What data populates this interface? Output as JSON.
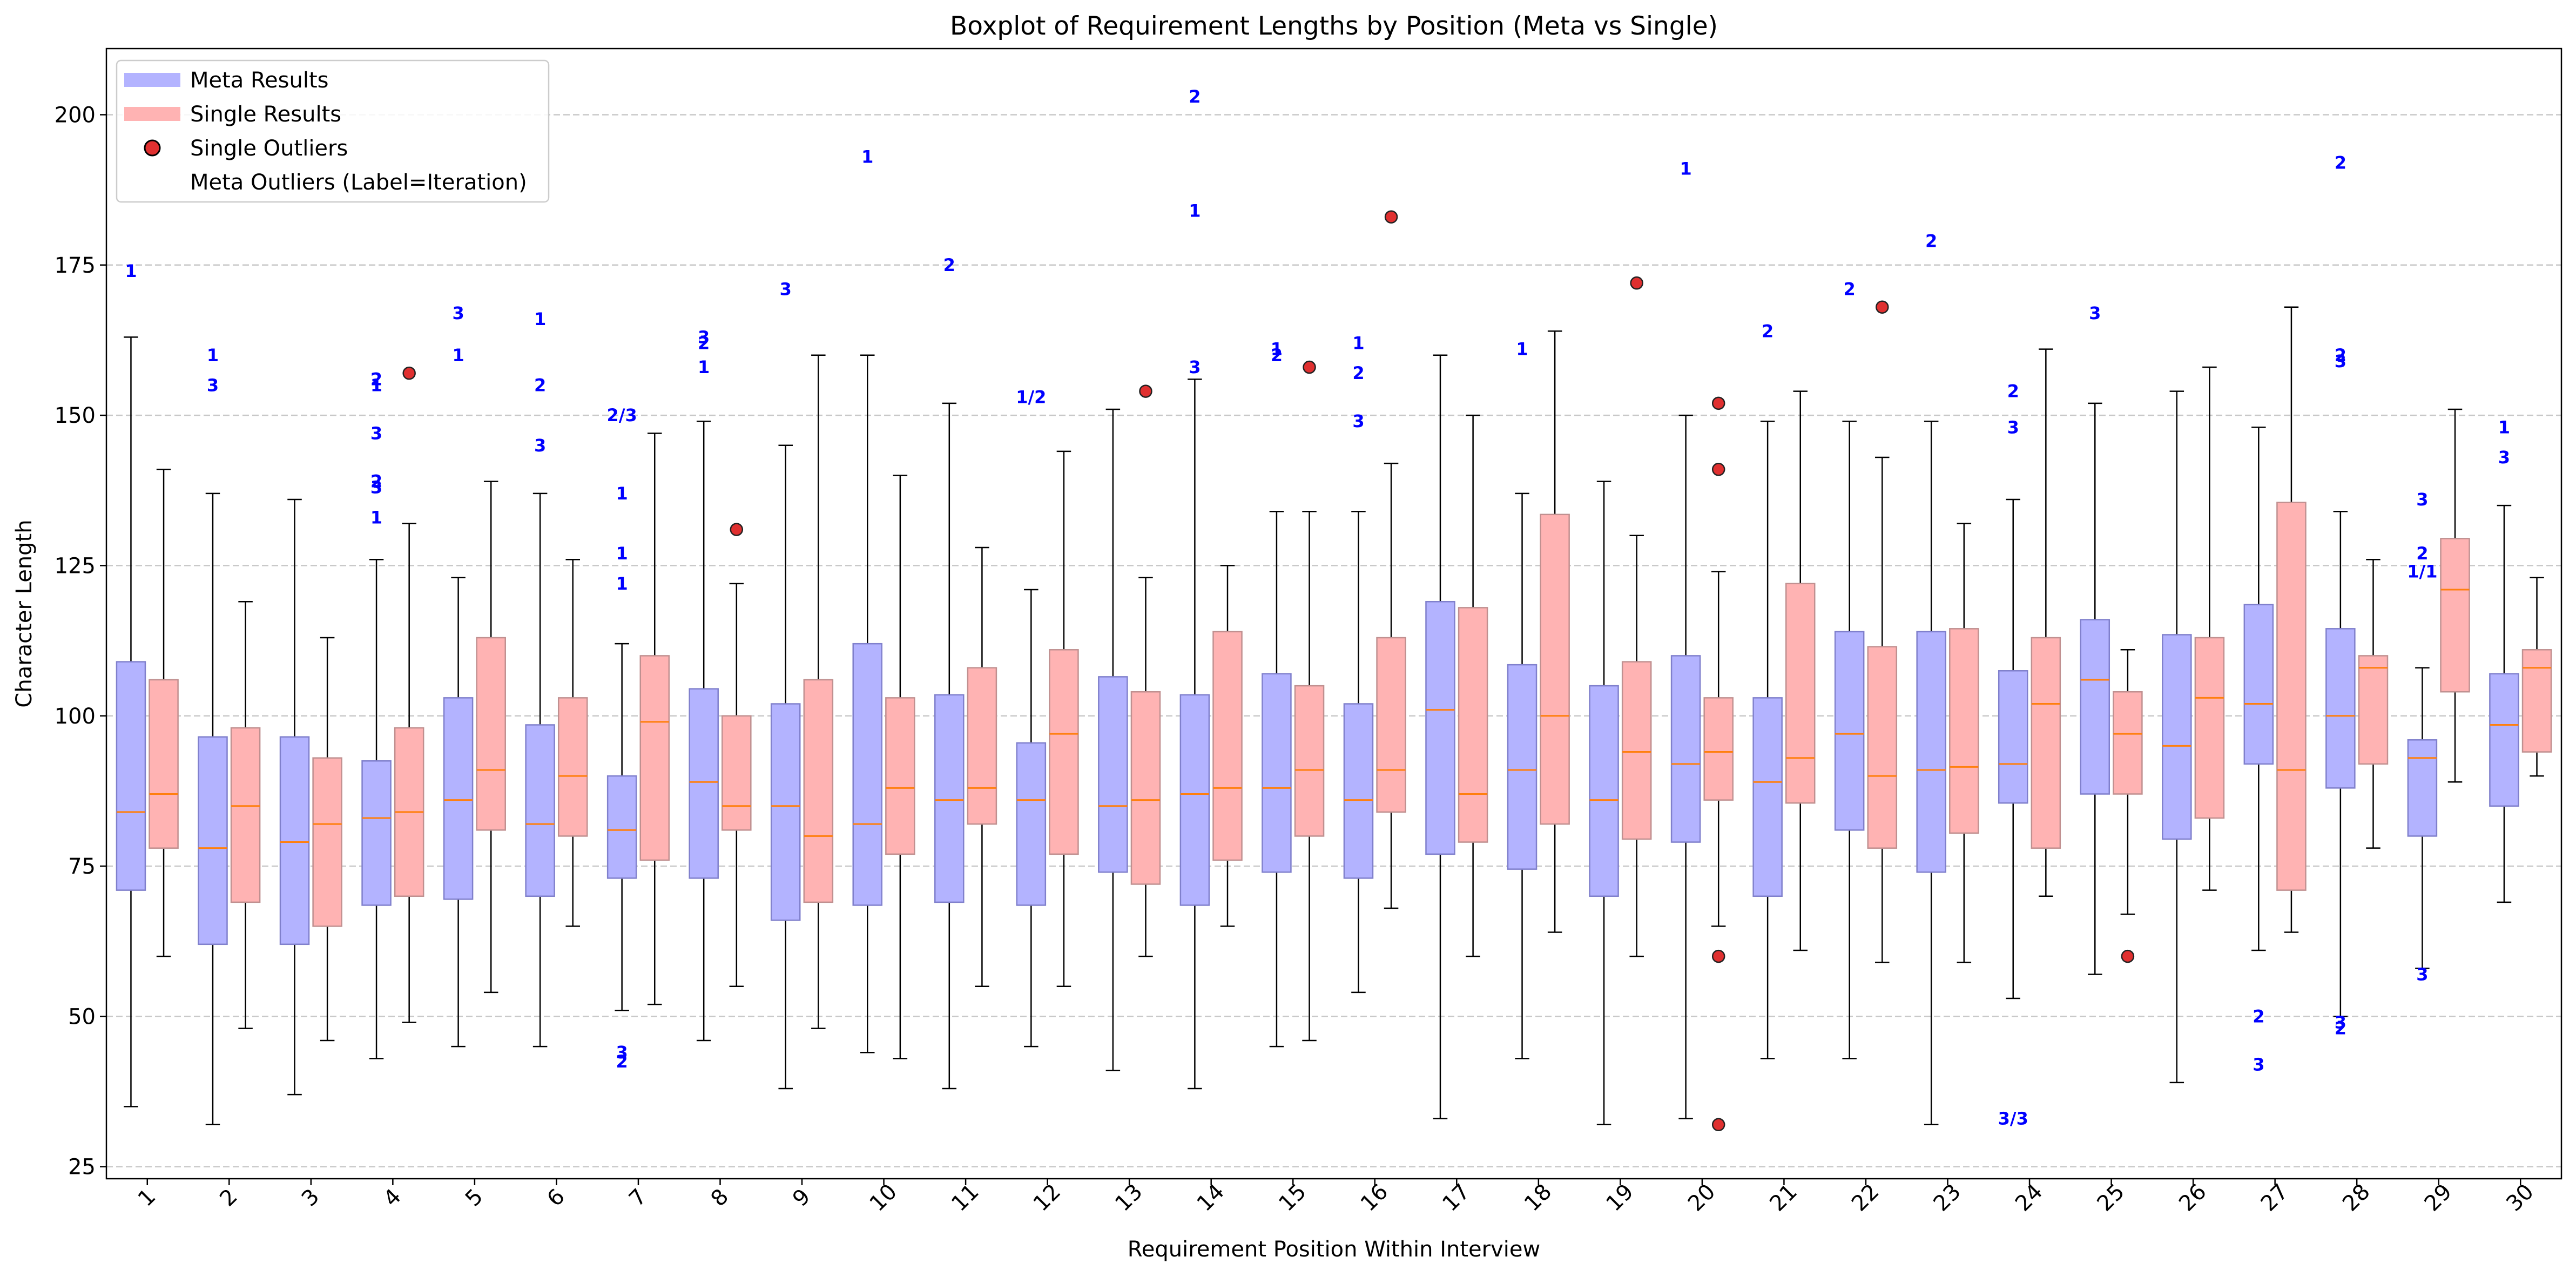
{
  "chart_data": {
    "type": "boxplot",
    "title": "Boxplot of Requirement Lengths by Position (Meta vs Single)",
    "xlabel": "Requirement Position Within Interview",
    "ylabel": "Character Length",
    "ylim": [
      23,
      211
    ],
    "yticks": [
      25,
      50,
      75,
      100,
      125,
      150,
      175,
      200
    ],
    "categories": [
      "1",
      "2",
      "3",
      "4",
      "5",
      "6",
      "7",
      "8",
      "9",
      "10",
      "11",
      "12",
      "13",
      "14",
      "15",
      "16",
      "17",
      "18",
      "19",
      "20",
      "21",
      "22",
      "23",
      "24",
      "25",
      "26",
      "27",
      "28",
      "29",
      "30"
    ],
    "grid": "y dashed",
    "legend_position": "top-left",
    "colors": {
      "meta_fill": "#b3b3ff",
      "meta_edge": "#8080cc",
      "single_fill": "#ffb3b3",
      "single_edge": "#c09090",
      "median": "#ff7f0e",
      "outlier_fill": "#e03030",
      "outlier_label": "#0000ff"
    },
    "legend": [
      {
        "label": "Meta Results",
        "marker": "patch",
        "color": "#b3b3ff"
      },
      {
        "label": "Single Results",
        "marker": "patch",
        "color": "#ffb3b3"
      },
      {
        "label": "Single Outliers",
        "marker": "circle",
        "color": "#e03030"
      },
      {
        "label": "Meta Outliers (Label=Iteration)",
        "marker": "none",
        "color": ""
      }
    ],
    "series": [
      {
        "name": "Meta Results",
        "boxes": [
          {
            "pos": 1,
            "whislo": 35,
            "q1": 71,
            "med": 84,
            "q3": 109,
            "whishi": 163
          },
          {
            "pos": 2,
            "whislo": 32,
            "q1": 62,
            "med": 78,
            "q3": 96.5,
            "whishi": 137
          },
          {
            "pos": 3,
            "whislo": 37,
            "q1": 62,
            "med": 79,
            "q3": 96.5,
            "whishi": 136
          },
          {
            "pos": 4,
            "whislo": 43,
            "q1": 68.5,
            "med": 83,
            "q3": 92.5,
            "whishi": 126
          },
          {
            "pos": 5,
            "whislo": 45,
            "q1": 69.5,
            "med": 86,
            "q3": 103,
            "whishi": 123
          },
          {
            "pos": 6,
            "whislo": 45,
            "q1": 70,
            "med": 82,
            "q3": 98.5,
            "whishi": 137
          },
          {
            "pos": 7,
            "whislo": 51,
            "q1": 73,
            "med": 81,
            "q3": 90,
            "whishi": 112
          },
          {
            "pos": 8,
            "whislo": 46,
            "q1": 73,
            "med": 89,
            "q3": 104.5,
            "whishi": 149
          },
          {
            "pos": 9,
            "whislo": 38,
            "q1": 66,
            "med": 85,
            "q3": 102,
            "whishi": 145
          },
          {
            "pos": 10,
            "whislo": 44,
            "q1": 68.5,
            "med": 82,
            "q3": 112,
            "whishi": 160
          },
          {
            "pos": 11,
            "whislo": 38,
            "q1": 69,
            "med": 86,
            "q3": 103.5,
            "whishi": 152
          },
          {
            "pos": 12,
            "whislo": 45,
            "q1": 68.5,
            "med": 86,
            "q3": 95.5,
            "whishi": 121
          },
          {
            "pos": 13,
            "whislo": 41,
            "q1": 74,
            "med": 85,
            "q3": 106.5,
            "whishi": 151
          },
          {
            "pos": 14,
            "whislo": 38,
            "q1": 68.5,
            "med": 87,
            "q3": 103.5,
            "whishi": 156
          },
          {
            "pos": 15,
            "whislo": 45,
            "q1": 74,
            "med": 88,
            "q3": 107,
            "whishi": 134
          },
          {
            "pos": 16,
            "whislo": 54,
            "q1": 73,
            "med": 86,
            "q3": 102,
            "whishi": 134
          },
          {
            "pos": 17,
            "whislo": 33,
            "q1": 77,
            "med": 101,
            "q3": 119,
            "whishi": 160
          },
          {
            "pos": 18,
            "whislo": 43,
            "q1": 74.5,
            "med": 91,
            "q3": 108.5,
            "whishi": 137
          },
          {
            "pos": 19,
            "whislo": 32,
            "q1": 70,
            "med": 86,
            "q3": 105,
            "whishi": 139
          },
          {
            "pos": 20,
            "whislo": 33,
            "q1": 79,
            "med": 92,
            "q3": 110,
            "whishi": 150
          },
          {
            "pos": 21,
            "whislo": 43,
            "q1": 70,
            "med": 89,
            "q3": 103,
            "whishi": 149
          },
          {
            "pos": 22,
            "whislo": 43,
            "q1": 81,
            "med": 97,
            "q3": 114,
            "whishi": 149
          },
          {
            "pos": 23,
            "whislo": 32,
            "q1": 74,
            "med": 91,
            "q3": 114,
            "whishi": 149
          },
          {
            "pos": 24,
            "whislo": 53,
            "q1": 85.5,
            "med": 92,
            "q3": 107.5,
            "whishi": 136
          },
          {
            "pos": 25,
            "whislo": 57,
            "q1": 87,
            "med": 106,
            "q3": 116,
            "whishi": 152
          },
          {
            "pos": 26,
            "whislo": 39,
            "q1": 79.5,
            "med": 95,
            "q3": 113.5,
            "whishi": 154
          },
          {
            "pos": 27,
            "whislo": 61,
            "q1": 92,
            "med": 102,
            "q3": 118.5,
            "whishi": 148
          },
          {
            "pos": 28,
            "whislo": 50,
            "q1": 88,
            "med": 100,
            "q3": 114.5,
            "whishi": 134
          },
          {
            "pos": 29,
            "whislo": 58,
            "q1": 80,
            "med": 93,
            "q3": 96,
            "whishi": 108
          },
          {
            "pos": 30,
            "whislo": 69,
            "q1": 85,
            "med": 98.5,
            "q3": 107,
            "whishi": 135
          }
        ]
      },
      {
        "name": "Single Results",
        "boxes": [
          {
            "pos": 1,
            "whislo": 60,
            "q1": 78,
            "med": 87,
            "q3": 106,
            "whishi": 141
          },
          {
            "pos": 2,
            "whislo": 48,
            "q1": 69,
            "med": 85,
            "q3": 98,
            "whishi": 119
          },
          {
            "pos": 3,
            "whislo": 46,
            "q1": 65,
            "med": 82,
            "q3": 93,
            "whishi": 113
          },
          {
            "pos": 4,
            "whislo": 49,
            "q1": 70,
            "med": 84,
            "q3": 98,
            "whishi": 132
          },
          {
            "pos": 5,
            "whislo": 54,
            "q1": 81,
            "med": 91,
            "q3": 113,
            "whishi": 139
          },
          {
            "pos": 6,
            "whislo": 65,
            "q1": 80,
            "med": 90,
            "q3": 103,
            "whishi": 126
          },
          {
            "pos": 7,
            "whislo": 52,
            "q1": 76,
            "med": 99,
            "q3": 110,
            "whishi": 147
          },
          {
            "pos": 8,
            "whislo": 55,
            "q1": 81,
            "med": 85,
            "q3": 100,
            "whishi": 122
          },
          {
            "pos": 9,
            "whislo": 48,
            "q1": 69,
            "med": 80,
            "q3": 106,
            "whishi": 160
          },
          {
            "pos": 10,
            "whislo": 43,
            "q1": 77,
            "med": 88,
            "q3": 103,
            "whishi": 140
          },
          {
            "pos": 11,
            "whislo": 55,
            "q1": 82,
            "med": 88,
            "q3": 108,
            "whishi": 128
          },
          {
            "pos": 12,
            "whislo": 55,
            "q1": 77,
            "med": 97,
            "q3": 111,
            "whishi": 144
          },
          {
            "pos": 13,
            "whislo": 60,
            "q1": 72,
            "med": 86,
            "q3": 104,
            "whishi": 123
          },
          {
            "pos": 14,
            "whislo": 65,
            "q1": 76,
            "med": 88,
            "q3": 114,
            "whishi": 125
          },
          {
            "pos": 15,
            "whislo": 46,
            "q1": 80,
            "med": 91,
            "q3": 105,
            "whishi": 134
          },
          {
            "pos": 16,
            "whislo": 68,
            "q1": 84,
            "med": 91,
            "q3": 113,
            "whishi": 142
          },
          {
            "pos": 17,
            "whislo": 60,
            "q1": 79,
            "med": 87,
            "q3": 118,
            "whishi": 150
          },
          {
            "pos": 18,
            "whislo": 64,
            "q1": 82,
            "med": 100,
            "q3": 133.5,
            "whishi": 164
          },
          {
            "pos": 19,
            "whislo": 60,
            "q1": 79.5,
            "med": 94,
            "q3": 109,
            "whishi": 130
          },
          {
            "pos": 20,
            "whislo": 65,
            "q1": 86,
            "med": 94,
            "q3": 103,
            "whishi": 124
          },
          {
            "pos": 21,
            "whislo": 61,
            "q1": 85.5,
            "med": 93,
            "q3": 122,
            "whishi": 154
          },
          {
            "pos": 22,
            "whislo": 59,
            "q1": 78,
            "med": 90,
            "q3": 111.5,
            "whishi": 143
          },
          {
            "pos": 23,
            "whislo": 59,
            "q1": 80.5,
            "med": 91.5,
            "q3": 114.5,
            "whishi": 132
          },
          {
            "pos": 24,
            "whislo": 70,
            "q1": 78,
            "med": 102,
            "q3": 113,
            "whishi": 161
          },
          {
            "pos": 25,
            "whislo": 67,
            "q1": 87,
            "med": 97,
            "q3": 104,
            "whishi": 111
          },
          {
            "pos": 26,
            "whislo": 71,
            "q1": 83,
            "med": 103,
            "q3": 113,
            "whishi": 158
          },
          {
            "pos": 27,
            "whislo": 64,
            "q1": 71,
            "med": 91,
            "q3": 135.5,
            "whishi": 168
          },
          {
            "pos": 28,
            "whislo": 78,
            "q1": 92,
            "med": 108,
            "q3": 110,
            "whishi": 126
          },
          {
            "pos": 29,
            "whislo": 89,
            "q1": 104,
            "med": 121,
            "q3": 129.5,
            "whishi": 151
          },
          {
            "pos": 30,
            "whislo": 90,
            "q1": 94,
            "med": 108,
            "q3": 111,
            "whishi": 123
          }
        ]
      }
    ],
    "single_outliers": [
      {
        "pos": 4,
        "y": 157
      },
      {
        "pos": 8,
        "y": 131
      },
      {
        "pos": 13,
        "y": 154
      },
      {
        "pos": 15,
        "y": 158
      },
      {
        "pos": 16,
        "y": 183
      },
      {
        "pos": 19,
        "y": 172
      },
      {
        "pos": 20,
        "y": 152
      },
      {
        "pos": 20,
        "y": 141
      },
      {
        "pos": 20,
        "y": 60
      },
      {
        "pos": 20,
        "y": 32
      },
      {
        "pos": 22,
        "y": 168
      },
      {
        "pos": 25,
        "y": 60
      }
    ],
    "meta_outliers": [
      {
        "pos": 1,
        "y": 174,
        "label": "1"
      },
      {
        "pos": 2,
        "y": 160,
        "label": "1"
      },
      {
        "pos": 2,
        "y": 155,
        "label": "3"
      },
      {
        "pos": 4,
        "y": 156,
        "label": "2"
      },
      {
        "pos": 4,
        "y": 155,
        "label": "1"
      },
      {
        "pos": 4,
        "y": 147,
        "label": "3"
      },
      {
        "pos": 4,
        "y": 139,
        "label": "2"
      },
      {
        "pos": 4,
        "y": 138,
        "label": "3"
      },
      {
        "pos": 4,
        "y": 133,
        "label": "1"
      },
      {
        "pos": 5,
        "y": 167,
        "label": "3"
      },
      {
        "pos": 5,
        "y": 160,
        "label": "1"
      },
      {
        "pos": 6,
        "y": 166,
        "label": "1"
      },
      {
        "pos": 6,
        "y": 155,
        "label": "2"
      },
      {
        "pos": 6,
        "y": 145,
        "label": "3"
      },
      {
        "pos": 7,
        "y": 150,
        "label": "2/3"
      },
      {
        "pos": 7,
        "y": 137,
        "label": "1"
      },
      {
        "pos": 7,
        "y": 127,
        "label": "1"
      },
      {
        "pos": 7,
        "y": 122,
        "label": "1"
      },
      {
        "pos": 7,
        "y": 44,
        "label": "3"
      },
      {
        "pos": 7,
        "y": 42.5,
        "label": "2"
      },
      {
        "pos": 8,
        "y": 163,
        "label": "3"
      },
      {
        "pos": 8,
        "y": 162,
        "label": "2"
      },
      {
        "pos": 8,
        "y": 158,
        "label": "1"
      },
      {
        "pos": 9,
        "y": 171,
        "label": "3"
      },
      {
        "pos": 10,
        "y": 193,
        "label": "1"
      },
      {
        "pos": 11,
        "y": 175,
        "label": "2"
      },
      {
        "pos": 12,
        "y": 153,
        "label": "1/2"
      },
      {
        "pos": 14,
        "y": 203,
        "label": "2"
      },
      {
        "pos": 14,
        "y": 184,
        "label": "1"
      },
      {
        "pos": 14,
        "y": 158,
        "label": "3"
      },
      {
        "pos": 15,
        "y": 161,
        "label": "1"
      },
      {
        "pos": 15,
        "y": 160,
        "label": "2"
      },
      {
        "pos": 16,
        "y": 162,
        "label": "1"
      },
      {
        "pos": 16,
        "y": 157,
        "label": "2"
      },
      {
        "pos": 16,
        "y": 149,
        "label": "3"
      },
      {
        "pos": 18,
        "y": 161,
        "label": "1"
      },
      {
        "pos": 20,
        "y": 191,
        "label": "1"
      },
      {
        "pos": 21,
        "y": 164,
        "label": "2"
      },
      {
        "pos": 22,
        "y": 171,
        "label": "2"
      },
      {
        "pos": 23,
        "y": 179,
        "label": "2"
      },
      {
        "pos": 24,
        "y": 154,
        "label": "2"
      },
      {
        "pos": 24,
        "y": 148,
        "label": "3"
      },
      {
        "pos": 24,
        "y": 33,
        "label": "3/3"
      },
      {
        "pos": 25,
        "y": 167,
        "label": "3"
      },
      {
        "pos": 27,
        "y": 50,
        "label": "2"
      },
      {
        "pos": 27,
        "y": 42,
        "label": "3"
      },
      {
        "pos": 28,
        "y": 192,
        "label": "2"
      },
      {
        "pos": 28,
        "y": 160,
        "label": "2"
      },
      {
        "pos": 28,
        "y": 159,
        "label": "3"
      },
      {
        "pos": 28,
        "y": 49,
        "label": "3"
      },
      {
        "pos": 28,
        "y": 48,
        "label": "2"
      },
      {
        "pos": 29,
        "y": 136,
        "label": "3"
      },
      {
        "pos": 29,
        "y": 127,
        "label": "2"
      },
      {
        "pos": 29,
        "y": 124,
        "label": "1/1"
      },
      {
        "pos": 29,
        "y": 57,
        "label": "3"
      },
      {
        "pos": 30,
        "y": 148,
        "label": "1"
      },
      {
        "pos": 30,
        "y": 143,
        "label": "3"
      }
    ]
  }
}
